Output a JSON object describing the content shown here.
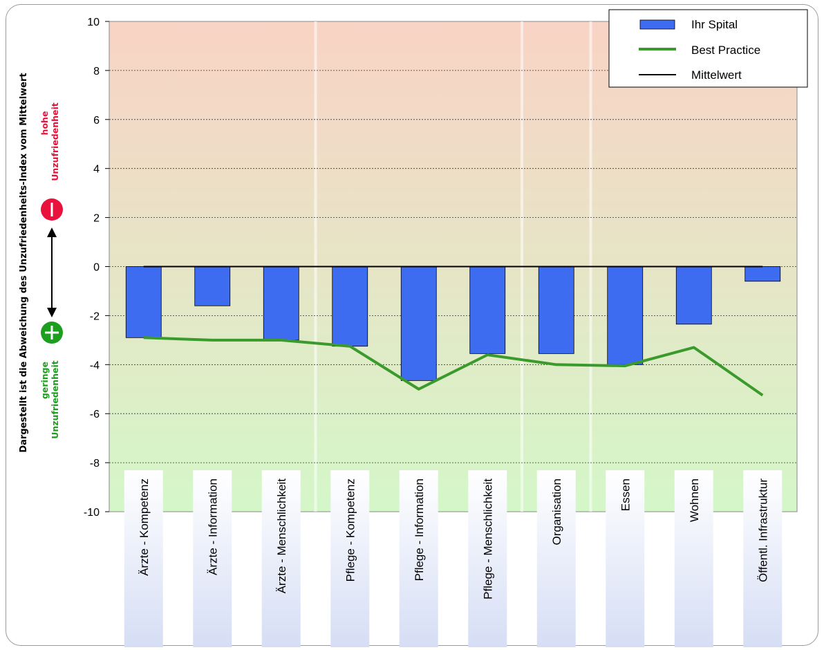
{
  "chart_data": {
    "type": "bar",
    "title": "",
    "ylabel": "Dargestellt ist die Abweichung des Unzufriedenheits-Index vom Mittelwert",
    "ylim": [
      -10,
      10
    ],
    "yticks": [
      "10",
      "8",
      "6",
      "4",
      "2",
      "0",
      "-2",
      "-4",
      "-6",
      "-8",
      "-10"
    ],
    "grid": "horizontal dotted",
    "legend_position": "top-right",
    "categories": [
      "Ärzte - Kompetenz",
      "Ärzte - Information",
      "Ärzte - Menschlichkeit",
      "Pflege - Kompetenz",
      "Pflege - Information",
      "Pflege - Menschlichkeit",
      "Organisation",
      "Essen",
      "Wohnen",
      "Öffentl. Infrastruktur"
    ],
    "series": [
      {
        "name": "Ihr Spital",
        "kind": "bar",
        "color": "#3d6cf0",
        "values": [
          -2.9,
          -1.6,
          -3.0,
          -3.25,
          -4.65,
          -3.55,
          -3.55,
          -4.0,
          -2.35,
          -0.6
        ]
      },
      {
        "name": "Best Practice",
        "kind": "line",
        "color": "#3a9a2c",
        "values": [
          -2.9,
          -3.0,
          -3.0,
          -3.25,
          -5.0,
          -3.6,
          -4.0,
          -4.05,
          -3.3,
          -5.25
        ]
      },
      {
        "name": "Mittelwert",
        "kind": "reference-line",
        "color": "#000000",
        "values": [
          0,
          0,
          0,
          0,
          0,
          0,
          0,
          0,
          0,
          0
        ]
      }
    ],
    "legend": [
      "Ihr Spital",
      "Best Practice",
      "Mittelwert"
    ],
    "background_gradient": {
      "top": "#f9d3c5",
      "bottom": "#d4f7c8"
    }
  },
  "side_labels": {
    "high": {
      "line1": "hohe",
      "line2": "Unzufriedenheit",
      "icon": "minus-circle-icon",
      "color": "#e8123c"
    },
    "low": {
      "line1": "geringe",
      "line2": "Unzufriedenheit",
      "icon": "plus-circle-icon",
      "color": "#1e9e1e"
    }
  }
}
